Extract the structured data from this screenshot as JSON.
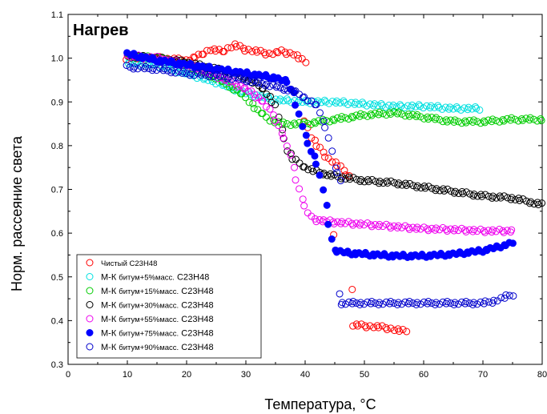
{
  "chart_data": {
    "type": "scatter",
    "title": "Нагрев",
    "xlabel": "Температура, °C",
    "ylabel": "Норм. рассеяние света",
    "xlim": [
      0,
      80
    ],
    "ylim": [
      0.3,
      1.1
    ],
    "x_ticks": [
      "0",
      "10",
      "20",
      "30",
      "40",
      "50",
      "60",
      "70",
      "80"
    ],
    "y_ticks": [
      "0.3",
      "0.4",
      "0.5",
      "0.6",
      "0.7",
      "0.8",
      "0.9",
      "1.0",
      "1.1"
    ],
    "grid": false,
    "legend_position": "bottom-left",
    "series": [
      {
        "name": "Чистый С23Н48",
        "name_main": "Чистый С23Н48",
        "name_small": "",
        "name_rest": "",
        "color": "#ff0000",
        "marker": "open-circle",
        "segments": [
          [
            [
              10,
              1.0
            ],
            [
              15,
              1.0
            ],
            [
              20,
              0.995
            ],
            [
              22,
              1.005
            ],
            [
              24,
              1.02
            ],
            [
              26,
              1.015
            ],
            [
              28,
              1.03
            ],
            [
              30,
              1.02
            ],
            [
              32,
              1.015
            ],
            [
              34,
              1.01
            ],
            [
              36,
              1.015
            ],
            [
              38,
              1.01
            ],
            [
              40,
              0.99
            ]
          ],
          [
            [
              40,
              0.86
            ],
            [
              41,
              0.82
            ],
            [
              42,
              0.8
            ],
            [
              44,
              0.77
            ],
            [
              46,
              0.75
            ],
            [
              47.5,
              0.73
            ]
          ],
          [
            [
              48,
              0.39
            ],
            [
              50,
              0.388
            ],
            [
              52,
              0.386
            ],
            [
              54,
              0.383
            ],
            [
              56,
              0.377
            ],
            [
              57,
              0.375
            ]
          ]
        ],
        "extra_points": [
          [
            45,
            0.6
          ],
          [
            48,
            0.47
          ]
        ]
      },
      {
        "name": "М-К битум+5%масс. С23Н48",
        "name_main": "М-К ",
        "name_small": "битум+5%масс.",
        "name_rest": " С23Н48",
        "color": "#00e0e0",
        "marker": "open-circle",
        "segments": [
          [
            [
              10,
              0.99
            ],
            [
              15,
              0.985
            ],
            [
              20,
              0.965
            ],
            [
              25,
              0.945
            ],
            [
              30,
              0.92
            ],
            [
              35,
              0.905
            ],
            [
              40,
              0.9
            ],
            [
              45,
              0.9
            ],
            [
              50,
              0.895
            ],
            [
              55,
              0.89
            ],
            [
              60,
              0.89
            ],
            [
              65,
              0.885
            ],
            [
              69.5,
              0.885
            ]
          ]
        ],
        "extra_points": []
      },
      {
        "name": "М-К битум+15%масс. С23Н48",
        "name_main": "М-К ",
        "name_small": "битум+15%масс.",
        "name_rest": " С23Н48",
        "color": "#00cc00",
        "marker": "open-circle",
        "segments": [
          [
            [
              10,
              1.005
            ],
            [
              15,
              1.0
            ],
            [
              20,
              0.985
            ],
            [
              25,
              0.955
            ],
            [
              28,
              0.93
            ],
            [
              30,
              0.91
            ],
            [
              32,
              0.88
            ],
            [
              34,
              0.86
            ],
            [
              36,
              0.85
            ],
            [
              38,
              0.85
            ],
            [
              40,
              0.85
            ],
            [
              45,
              0.86
            ],
            [
              50,
              0.87
            ],
            [
              55,
              0.875
            ],
            [
              60,
              0.865
            ],
            [
              65,
              0.855
            ],
            [
              70,
              0.855
            ],
            [
              75,
              0.86
            ],
            [
              80,
              0.86
            ]
          ]
        ],
        "extra_points": []
      },
      {
        "name": "М-К битум+30%масс. С23Н48",
        "name_main": "М-К ",
        "name_small": "битум+30%масс.",
        "name_rest": " С23Н48",
        "color": "#000000",
        "marker": "open-circle",
        "segments": [
          [
            [
              10,
              1.005
            ],
            [
              15,
              1.0
            ],
            [
              20,
              0.99
            ],
            [
              25,
              0.975
            ],
            [
              30,
              0.955
            ],
            [
              33,
              0.93
            ],
            [
              35,
              0.89
            ],
            [
              36,
              0.84
            ],
            [
              37,
              0.79
            ],
            [
              38,
              0.77
            ],
            [
              40,
              0.75
            ],
            [
              42,
              0.74
            ],
            [
              45,
              0.73
            ],
            [
              50,
              0.72
            ],
            [
              55,
              0.715
            ],
            [
              60,
              0.705
            ],
            [
              65,
              0.695
            ],
            [
              70,
              0.685
            ],
            [
              75,
              0.68
            ],
            [
              80,
              0.665
            ]
          ]
        ],
        "extra_points": []
      },
      {
        "name": "М-К битум+55%масс. С23Н48",
        "name_main": "М-К ",
        "name_small": "битум+55%масс.",
        "name_rest": " С23Н48",
        "color": "#ee00ee",
        "marker": "open-circle",
        "segments": [
          [
            [
              10,
              1.005
            ],
            [
              15,
              1.0
            ],
            [
              20,
              0.985
            ],
            [
              25,
              0.96
            ],
            [
              30,
              0.93
            ],
            [
              33,
              0.9
            ],
            [
              35,
              0.86
            ],
            [
              37,
              0.8
            ],
            [
              38,
              0.75
            ],
            [
              39,
              0.7
            ],
            [
              40,
              0.66
            ],
            [
              41,
              0.635
            ],
            [
              42,
              0.63
            ],
            [
              45,
              0.625
            ],
            [
              50,
              0.62
            ],
            [
              55,
              0.615
            ],
            [
              60,
              0.61
            ],
            [
              65,
              0.608
            ],
            [
              70,
              0.605
            ],
            [
              75,
              0.605
            ]
          ]
        ],
        "extra_points": []
      },
      {
        "name": "М-К битум+75%масс. С23Н48",
        "name_main": "М-К ",
        "name_small": "битум+75%масс.",
        "name_rest": " С23Н48",
        "color": "#0000ff",
        "marker": "filled-circle",
        "segments": [
          [
            [
              10,
              1.01
            ],
            [
              15,
              0.995
            ],
            [
              20,
              0.985
            ],
            [
              25,
              0.975
            ],
            [
              30,
              0.965
            ],
            [
              35,
              0.955
            ],
            [
              37,
              0.945
            ],
            [
              38,
              0.92
            ],
            [
              39,
              0.87
            ],
            [
              40,
              0.82
            ],
            [
              41,
              0.79
            ],
            [
              42,
              0.76
            ],
            [
              43,
              0.7
            ],
            [
              44,
              0.62
            ],
            [
              45,
              0.56
            ],
            [
              47,
              0.555
            ],
            [
              50,
              0.552
            ],
            [
              55,
              0.548
            ],
            [
              60,
              0.548
            ],
            [
              65,
              0.552
            ],
            [
              70,
              0.56
            ],
            [
              73,
              0.57
            ],
            [
              75,
              0.578
            ]
          ]
        ],
        "extra_points": []
      },
      {
        "name": "М-К битум+90%масс. С23Н48",
        "name_main": "М-К ",
        "name_small": "битум+90%масс.",
        "name_rest": " С23Н48",
        "color": "#0000cc",
        "marker": "open-circle",
        "segments": [
          [
            [
              10,
              0.98
            ],
            [
              15,
              0.975
            ],
            [
              20,
              0.965
            ],
            [
              25,
              0.96
            ],
            [
              30,
              0.95
            ],
            [
              35,
              0.935
            ],
            [
              38,
              0.925
            ],
            [
              40,
              0.91
            ],
            [
              42,
              0.89
            ],
            [
              43,
              0.86
            ],
            [
              44,
              0.82
            ],
            [
              45,
              0.75
            ],
            [
              46,
              0.72
            ]
          ],
          [
            [
              46,
              0.44
            ],
            [
              50,
              0.44
            ],
            [
              55,
              0.44
            ],
            [
              60,
              0.44
            ],
            [
              65,
              0.44
            ],
            [
              70,
              0.44
            ],
            [
              72,
              0.445
            ],
            [
              74,
              0.455
            ],
            [
              75,
              0.46
            ]
          ]
        ],
        "extra_points": [
          [
            46,
            0.46
          ]
        ]
      }
    ]
  }
}
